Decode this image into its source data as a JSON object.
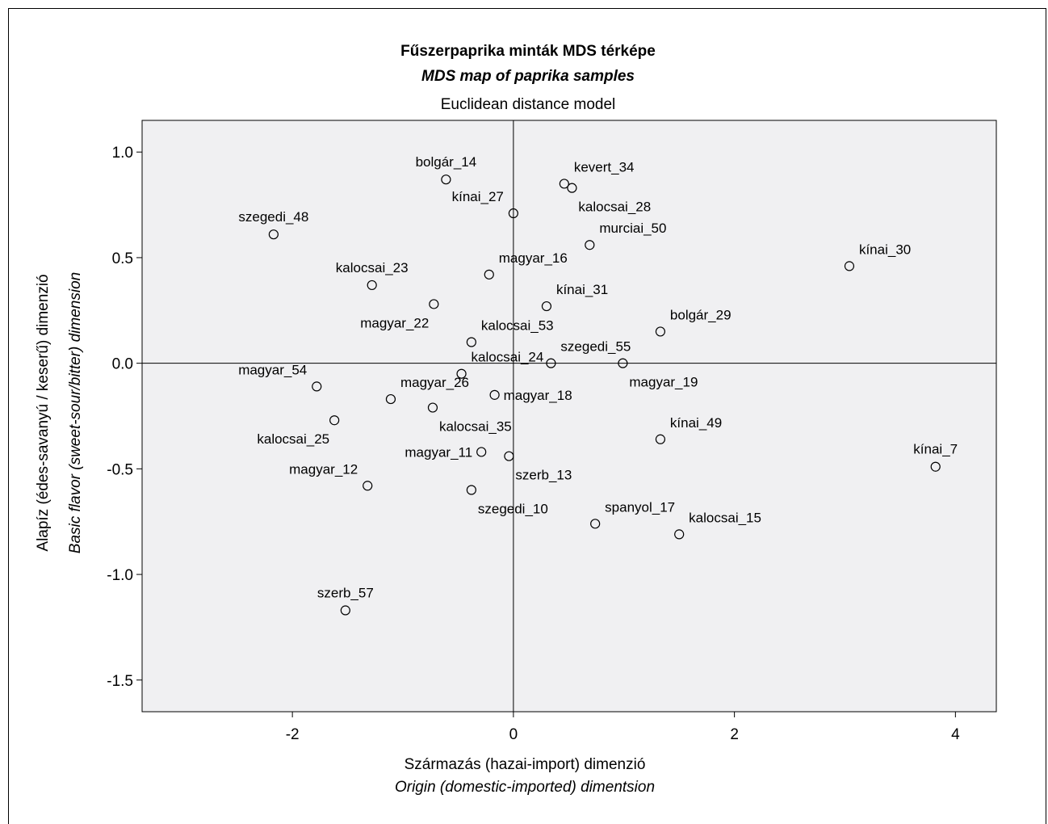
{
  "chart_data": {
    "type": "scatter",
    "title": "Fűszerpaprika minták MDS térképe",
    "title_en": "MDS map of paprika samples",
    "subtitle": "Euclidean distance model",
    "xlabel": "Származás (hazai-import) dimenzió",
    "xlabel_en": "Origin (domestic-imported) dimentsion",
    "ylabel": "Alapíz (édes-savanyú / keserű) dimenzió",
    "ylabel_en": "Basic flavor (sweet-sour/bitter) dimension",
    "xlim": [
      -3.36,
      4.37
    ],
    "ylim": [
      -1.65,
      1.15
    ],
    "x_ticks": [
      -2,
      0,
      2,
      4
    ],
    "x_tick_labels": [
      "-2",
      "0",
      "2",
      "4"
    ],
    "y_ticks": [
      1.0,
      0.5,
      0.0,
      -0.5,
      -1.0,
      -1.5
    ],
    "y_tick_labels": [
      "1.0",
      "0.5",
      "0.0",
      "-0.5",
      "-1.0",
      "-1.5"
    ],
    "reference_lines": {
      "x": 0,
      "y": 0
    },
    "grid": false,
    "points": [
      {
        "label": "bolgár_14",
        "x": -0.61,
        "y": 0.87,
        "label_pos": "above"
      },
      {
        "label": "kevert_34",
        "x": 0.46,
        "y": 0.85,
        "label_pos": "above-right"
      },
      {
        "label": "kalocsai_28",
        "x": 0.53,
        "y": 0.83,
        "label_pos": "below-right"
      },
      {
        "label": "kínai_27",
        "x": 0.0,
        "y": 0.71,
        "label_pos": "above-left"
      },
      {
        "label": "szegedi_48",
        "x": -2.17,
        "y": 0.61,
        "label_pos": "above"
      },
      {
        "label": "murciai_50",
        "x": 0.69,
        "y": 0.56,
        "label_pos": "above-right"
      },
      {
        "label": "kínai_30",
        "x": 3.04,
        "y": 0.46,
        "label_pos": "above-right"
      },
      {
        "label": "kalocsai_23",
        "x": -1.28,
        "y": 0.37,
        "label_pos": "above"
      },
      {
        "label": "magyar_16",
        "x": -0.22,
        "y": 0.42,
        "label_pos": "above-right"
      },
      {
        "label": "kínai_31",
        "x": 0.3,
        "y": 0.27,
        "label_pos": "above-right"
      },
      {
        "label": "magyar_22",
        "x": -0.72,
        "y": 0.28,
        "label_pos": "below-left"
      },
      {
        "label": "bolgár_29",
        "x": 1.33,
        "y": 0.15,
        "label_pos": "above-right"
      },
      {
        "label": "kalocsai_53",
        "x": -0.38,
        "y": 0.1,
        "label_pos": "above-right"
      },
      {
        "label": "szegedi_55",
        "x": 0.34,
        "y": 0.0,
        "label_pos": "above-right"
      },
      {
        "label": "magyar_19",
        "x": 0.99,
        "y": 0.0,
        "label_pos": "below-right"
      },
      {
        "label": "kalocsai_24",
        "x": -0.47,
        "y": -0.05,
        "label_pos": "above-right"
      },
      {
        "label": "magyar_54",
        "x": -1.78,
        "y": -0.11,
        "label_pos": "above-left"
      },
      {
        "label": "magyar_26",
        "x": -1.11,
        "y": -0.17,
        "label_pos": "above-right"
      },
      {
        "label": "magyar_18",
        "x": -0.17,
        "y": -0.15,
        "label_pos": "right"
      },
      {
        "label": "kalocsai_35",
        "x": -0.73,
        "y": -0.21,
        "label_pos": "below-right"
      },
      {
        "label": "kalocsai_25",
        "x": -1.62,
        "y": -0.27,
        "label_pos": "below-left"
      },
      {
        "label": "kínai_49",
        "x": 1.33,
        "y": -0.36,
        "label_pos": "above-right"
      },
      {
        "label": "magyar_11",
        "x": -0.29,
        "y": -0.42,
        "label_pos": "left"
      },
      {
        "label": "szerb_13",
        "x": -0.04,
        "y": -0.44,
        "label_pos": "below-right"
      },
      {
        "label": "kínai_7",
        "x": 3.82,
        "y": -0.49,
        "label_pos": "above"
      },
      {
        "label": "magyar_12",
        "x": -1.32,
        "y": -0.58,
        "label_pos": "above-left"
      },
      {
        "label": "szegedi_10",
        "x": -0.38,
        "y": -0.6,
        "label_pos": "below-right"
      },
      {
        "label": "spanyol_17",
        "x": 0.74,
        "y": -0.76,
        "label_pos": "above-right"
      },
      {
        "label": "kalocsai_15",
        "x": 1.5,
        "y": -0.81,
        "label_pos": "above-right"
      },
      {
        "label": "szerb_57",
        "x": -1.52,
        "y": -1.17,
        "label_pos": "above"
      }
    ]
  }
}
